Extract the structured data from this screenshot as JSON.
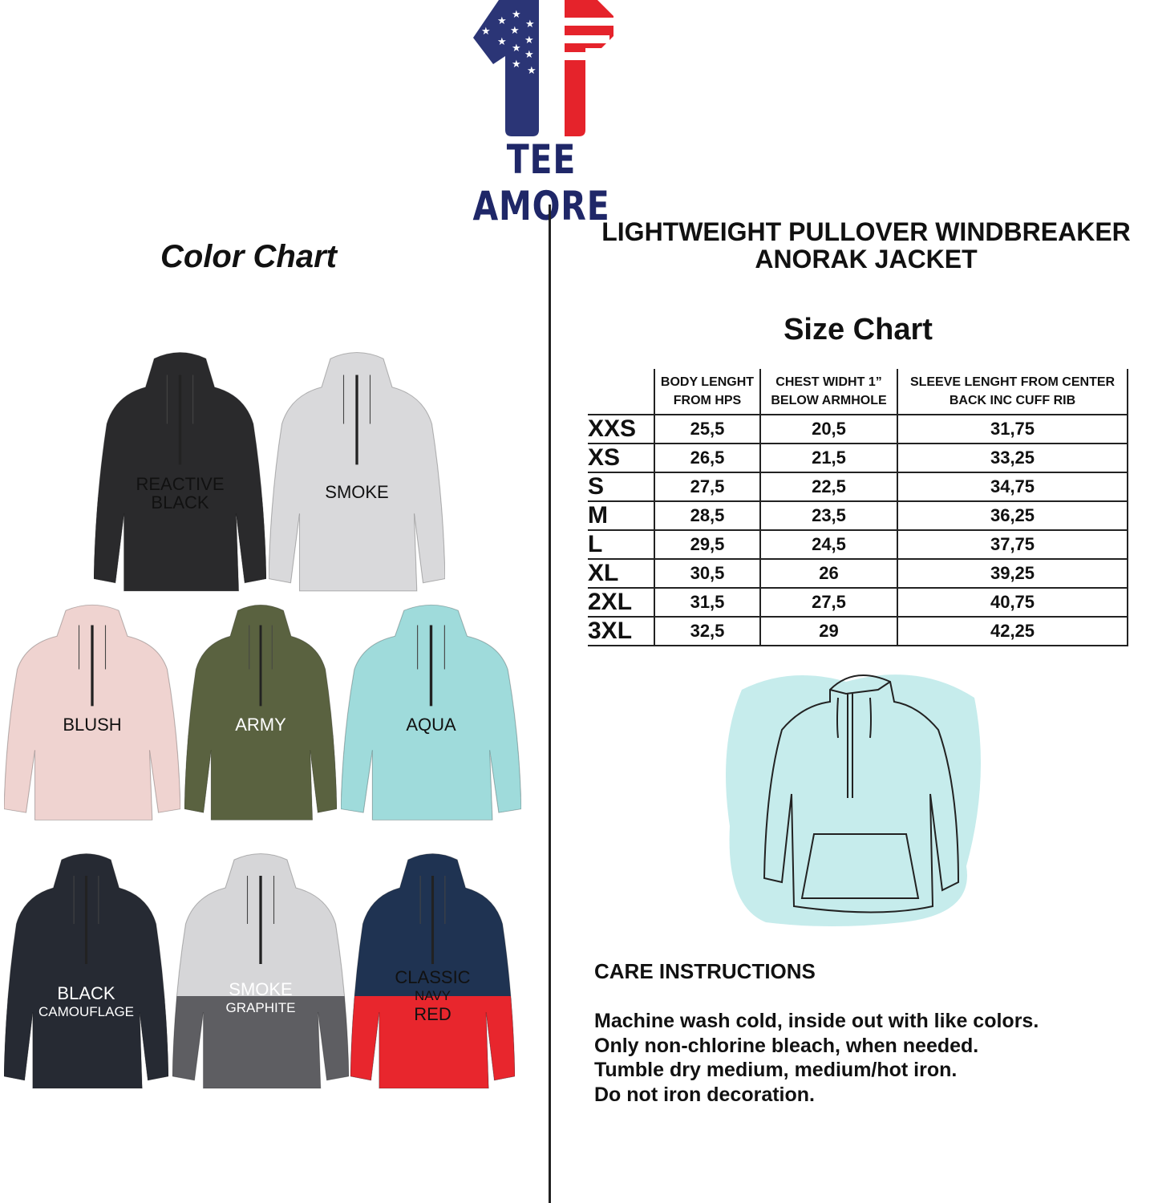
{
  "brand": {
    "name": "TEE AMORE",
    "colors": {
      "navy": "#2b3576",
      "red": "#e5232b"
    }
  },
  "color_chart": {
    "title": "Color Chart",
    "items": [
      {
        "label": "REACTIVE",
        "label2": "BLACK",
        "top": "#2a2a2c",
        "bottom": "#2a2a2c",
        "light": false
      },
      {
        "label": "SMOKE",
        "label2": "",
        "top": "#d9d9db",
        "bottom": "#d9d9db",
        "light": false
      },
      {
        "label": "BLUSH",
        "label2": "",
        "top": "#efd3d0",
        "bottom": "#efd3d0",
        "light": false
      },
      {
        "label": "ARMY",
        "label2": "",
        "top": "#5a6240",
        "bottom": "#5a6240",
        "light": true
      },
      {
        "label": "AQUA",
        "label2": "",
        "top": "#9fdbdb",
        "bottom": "#9fdbdb",
        "light": false
      },
      {
        "label": "BLACK",
        "label2": "CAMOUFLAGE",
        "top": "#262a33",
        "bottom": "#262a33",
        "light": true
      },
      {
        "label": "SMOKE",
        "label2": "GRAPHITE",
        "top": "#d6d6d8",
        "bottom": "#5e5e62",
        "light": true
      },
      {
        "label": "CLASSIC",
        "label2": "NAVY",
        "label3": "RED",
        "top": "#1f3352",
        "bottom": "#e8262d",
        "light": false
      }
    ]
  },
  "product": {
    "title_line1": "LIGHTWEIGHT PULLOVER WINDBREAKER",
    "title_line2": "ANORAK JACKET"
  },
  "size_chart": {
    "title": "Size Chart",
    "headers": [
      {
        "line1": "BODY LENGHT",
        "line2": "FROM HPS"
      },
      {
        "line1": "CHEST WIDHT 1”",
        "line2": "BELOW ARMHOLE"
      },
      {
        "line1": "SLEEVE LENGHT FROM CENTER",
        "line2": "BACK INC CUFF RIB"
      }
    ],
    "rows": [
      [
        "XXS",
        "25,5",
        "20,5",
        "31,75"
      ],
      [
        "XS",
        "26,5",
        "21,5",
        "33,25"
      ],
      [
        "S",
        "27,5",
        "22,5",
        "34,75"
      ],
      [
        "M",
        "28,5",
        "23,5",
        "36,25"
      ],
      [
        "L",
        "29,5",
        "24,5",
        "37,75"
      ],
      [
        "XL",
        "30,5",
        "26",
        "39,25"
      ],
      [
        "2XL",
        "31,5",
        "27,5",
        "40,75"
      ],
      [
        "3XL",
        "32,5",
        "29",
        "42,25"
      ]
    ]
  },
  "care": {
    "title": "CARE INSTRUCTIONS",
    "lines": [
      "Machine wash cold, inside out with like colors.",
      "Only non-chlorine bleach, when needed.",
      "Tumble dry medium, medium/hot iron.",
      "Do not iron decoration."
    ]
  }
}
